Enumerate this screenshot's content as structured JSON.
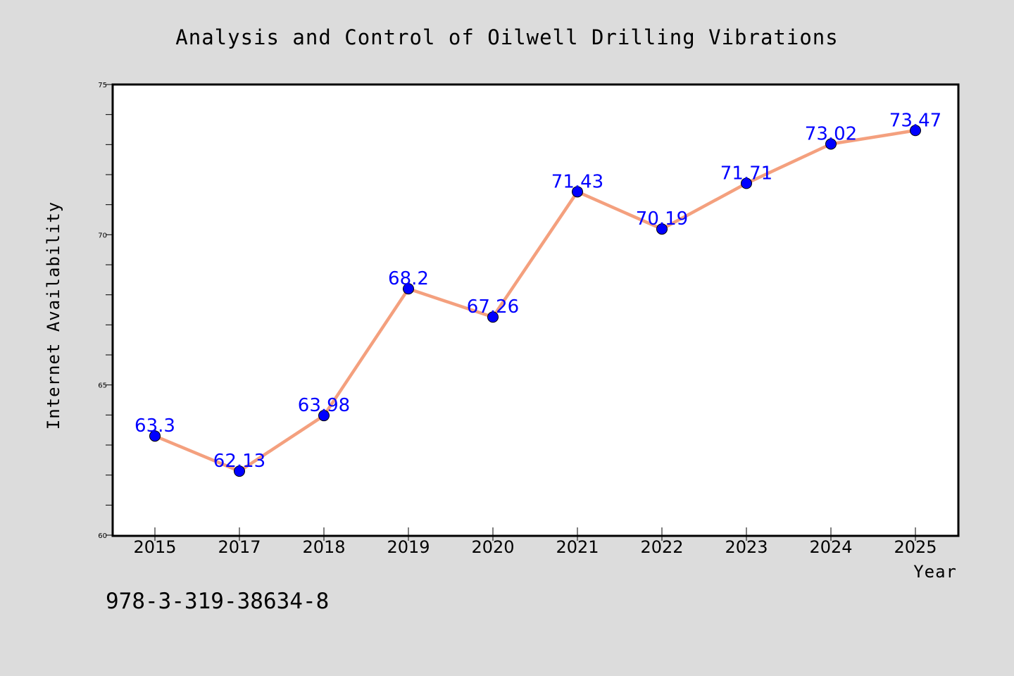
{
  "chart_data": {
    "type": "line",
    "title": "Analysis and Control of Oilwell Drilling Vibrations",
    "xlabel": "Year",
    "ylabel": "Internet Availability",
    "categories": [
      "2015",
      "2017",
      "2018",
      "2019",
      "2020",
      "2021",
      "2022",
      "2023",
      "2024",
      "2025"
    ],
    "series": [
      {
        "values": [
          63.3,
          62.13,
          63.98,
          68.2,
          67.26,
          71.43,
          70.19,
          71.71,
          73.02,
          73.47
        ],
        "labels": [
          "63.3",
          "62.13",
          "63.98",
          "68.2",
          "67.26",
          "71.43",
          "70.19",
          "71.71",
          "73.02",
          "73.47"
        ]
      }
    ],
    "ylim": [
      60,
      75
    ],
    "yticks": [
      60,
      65,
      70,
      75
    ],
    "grid": false,
    "legend": "none",
    "colors": {
      "line": "#f4a07e",
      "marker": "#0000ff",
      "data_label": "#0000ff",
      "background": "#dcdcdc",
      "plot_background": "#ffffff"
    }
  },
  "footer": {
    "isbn": "978-3-319-38634-8"
  }
}
